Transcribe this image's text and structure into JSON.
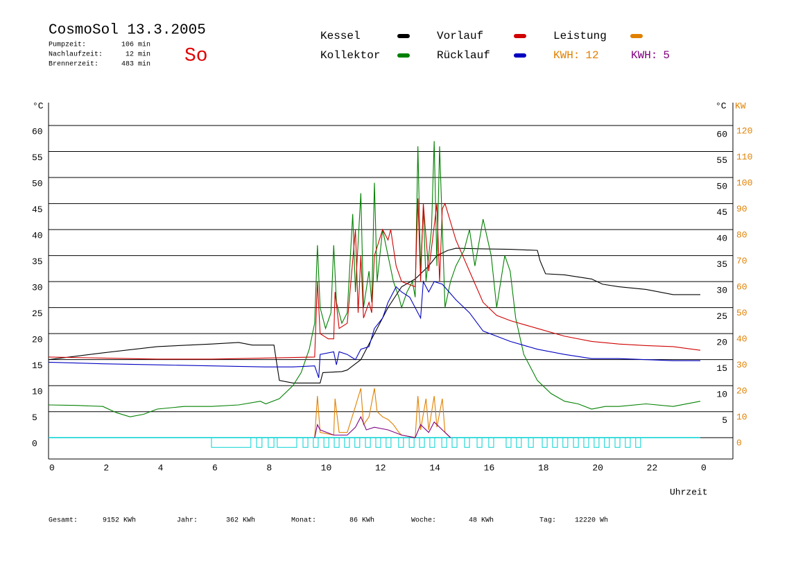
{
  "header": {
    "title": "CosmoSol 13.3.2005",
    "day": "So",
    "stats": [
      {
        "label": "Pumpzeit:",
        "value": "106 min"
      },
      {
        "label": "Nachlaufzeit:",
        "value": "12 min"
      },
      {
        "label": "Brennerzeit:",
        "value": "483 min"
      }
    ]
  },
  "chart_data": {
    "type": "line",
    "x_label": "Uhrzeit",
    "y_label": "°C",
    "y2_label": "KW",
    "xlim": [
      0,
      25.2
    ],
    "xticks": [
      0,
      2,
      4,
      6,
      8,
      10,
      12,
      14,
      16,
      18,
      20,
      22,
      {
        "value": 24,
        "label": "0"
      }
    ],
    "ylim": [
      -4.1,
      64.4
    ],
    "yticks": [
      0,
      5,
      10,
      15,
      20,
      25,
      30,
      35,
      40,
      45,
      50,
      55,
      60
    ],
    "y_right_ticks": [
      5,
      10,
      15,
      20,
      25,
      30,
      35,
      40,
      45,
      50,
      55,
      60
    ],
    "y2lim": [
      -8.2,
      128.8
    ],
    "y2ticks": [
      0,
      10,
      20,
      30,
      40,
      50,
      60,
      70,
      80,
      90,
      100,
      110,
      120
    ],
    "grid": true,
    "series": [
      {
        "name": "Kessel",
        "color": "#000000",
        "x": [
          0,
          2,
          4,
          6,
          7,
          7.5,
          8.3,
          8.5,
          9,
          10,
          10.1,
          10.8,
          11,
          11.5,
          12,
          12.5,
          13,
          13.5,
          14,
          14.3,
          14.7,
          15,
          16,
          17,
          18,
          18.1,
          18.3,
          19,
          20,
          20.4,
          21,
          22,
          23,
          24
        ],
        "values": [
          15,
          16.3,
          17.5,
          18,
          18.3,
          17.8,
          17.8,
          11,
          10.5,
          10.5,
          12.5,
          12.7,
          13,
          15,
          20,
          25,
          29,
          30.5,
          33,
          35,
          36,
          36.4,
          36.3,
          36.2,
          36,
          34,
          31.5,
          31.3,
          30.5,
          29.5,
          29,
          28.5,
          27.5,
          27.5
        ]
      },
      {
        "name": "Kollektor",
        "color": "#008000",
        "x": [
          0,
          1,
          2,
          2.5,
          3,
          3.5,
          4,
          5,
          6,
          7,
          7.8,
          8,
          8.5,
          9,
          9.3,
          9.6,
          9.8,
          9.9,
          10,
          10.2,
          10.4,
          10.5,
          10.6,
          10.8,
          11,
          11.2,
          11.3,
          11.5,
          11.6,
          11.8,
          11.9,
          12,
          12.1,
          12.3,
          12.5,
          12.7,
          12.9,
          13,
          13.2,
          13.4,
          13.5,
          13.6,
          13.7,
          13.8,
          13.9,
          14.1,
          14.2,
          14.3,
          14.4,
          14.6,
          14.8,
          15,
          15.3,
          15.5,
          15.7,
          16,
          16.3,
          16.5,
          16.8,
          17,
          17.2,
          17.5,
          18,
          18.5,
          19,
          19.5,
          20,
          20.5,
          21,
          22,
          23,
          24
        ],
        "values": [
          6.3,
          6.2,
          6,
          4.8,
          4,
          4.5,
          5.5,
          6,
          6,
          6.3,
          7,
          6.5,
          7.5,
          10,
          12.5,
          17,
          22,
          37,
          25,
          21,
          24,
          37,
          26,
          22,
          24,
          43,
          28,
          47,
          25,
          32,
          26,
          49,
          30,
          40,
          35,
          30,
          27,
          25,
          28,
          30,
          27,
          56,
          32,
          44,
          30,
          40,
          57,
          33,
          56,
          25,
          30,
          33,
          36,
          40,
          33,
          42,
          35,
          25,
          35,
          32,
          23,
          16,
          11,
          8.5,
          7,
          6.5,
          5.5,
          6,
          6,
          6.5,
          6,
          7
        ]
      },
      {
        "name": "Vorlauf",
        "color": "#d00000",
        "x": [
          0,
          2,
          4,
          6,
          8,
          9.8,
          9.9,
          10,
          10.3,
          10.5,
          10.55,
          10.7,
          11,
          11.3,
          11.4,
          11.5,
          11.6,
          11.8,
          11.9,
          12,
          12.3,
          12.5,
          12.6,
          12.8,
          13,
          13.5,
          13.6,
          13.7,
          13.8,
          14,
          14.3,
          14.4,
          14.5,
          14.6,
          15,
          15.5,
          16,
          16.5,
          17,
          18,
          19,
          20,
          21,
          22,
          23,
          24
        ],
        "values": [
          15.5,
          15.3,
          15.1,
          15.1,
          15.3,
          15.5,
          30,
          20,
          19,
          19,
          28,
          21,
          22,
          40,
          24,
          35,
          23,
          26,
          24,
          35,
          40,
          38,
          40,
          33,
          30,
          29,
          46,
          30,
          45,
          32,
          45,
          30,
          44,
          45,
          38,
          32,
          26,
          23.5,
          22.5,
          21,
          19.5,
          18.5,
          18,
          17.7,
          17.5,
          16.8
        ]
      },
      {
        "name": "Rücklauf",
        "color": "#0000c0",
        "x": [
          0,
          2,
          4,
          6,
          8,
          9,
          9.8,
          9.95,
          10,
          10.5,
          10.6,
          10.7,
          11,
          11.3,
          11.5,
          11.8,
          12,
          12.3,
          12.5,
          12.8,
          13,
          13.3,
          13.7,
          13.8,
          14,
          14.2,
          14.5,
          15,
          15.5,
          16,
          17,
          18,
          19,
          20,
          21,
          22,
          23,
          24
        ],
        "values": [
          14.5,
          14.2,
          14,
          13.8,
          13.6,
          13.6,
          13.8,
          11.5,
          16,
          16.5,
          14,
          16.5,
          16,
          15,
          17,
          17.5,
          21,
          23,
          26,
          29,
          28,
          27,
          23,
          30,
          28,
          30,
          29.5,
          26.5,
          24,
          20.5,
          18.5,
          17,
          16,
          15.2,
          15.2,
          15,
          14.8,
          14.8
        ]
      },
      {
        "name": "Leistung",
        "color": "#e08000",
        "axis": "y2",
        "x": [
          9.8,
          9.9,
          10,
          10.5,
          10.55,
          10.7,
          11,
          11.3,
          11.5,
          11.6,
          11.8,
          12,
          12.1,
          12.3,
          12.5,
          12.7,
          12.9,
          13,
          13.5,
          13.6,
          13.7,
          13.9,
          14,
          14.2,
          14.3,
          14.5,
          14.6,
          14.8
        ],
        "values": [
          0,
          16,
          2,
          1,
          15,
          2,
          2,
          12,
          19,
          5,
          8,
          19,
          10,
          8,
          7,
          5,
          2,
          1,
          0,
          16,
          3,
          15,
          3,
          16,
          4,
          15,
          2,
          0
        ]
      },
      {
        "color": "#800080",
        "axis": "y2",
        "x": [
          9.8,
          9.9,
          10,
          10.5,
          11,
          11.3,
          11.5,
          11.7,
          12,
          12.5,
          13,
          13.5,
          13.7,
          14,
          14.2,
          14.5,
          14.8
        ],
        "values": [
          0,
          5,
          3,
          1,
          1,
          4,
          8,
          3,
          4,
          3,
          1,
          0,
          5,
          2,
          6,
          3,
          0
        ]
      }
    ],
    "kwh": [
      {
        "label": "KWH:",
        "value": 12,
        "color": "#e08000"
      },
      {
        "label": "KWH:",
        "value": 5,
        "color": "#800080"
      }
    ],
    "pump_color": "#00d0d0",
    "pump": [
      [
        6.0,
        7.45
      ],
      [
        7.66,
        7.86
      ],
      [
        8.09,
        8.3
      ],
      [
        8.42,
        9.14
      ],
      [
        9.37,
        9.55
      ],
      [
        9.75,
        9.93
      ],
      [
        10.14,
        10.32
      ],
      [
        10.52,
        10.7
      ],
      [
        10.9,
        11.08
      ],
      [
        11.28,
        11.46
      ],
      [
        11.67,
        11.85
      ],
      [
        12.05,
        12.23
      ],
      [
        12.43,
        12.61
      ],
      [
        12.89,
        13.07
      ],
      [
        13.28,
        13.46
      ],
      [
        13.66,
        13.84
      ],
      [
        14.04,
        14.22
      ],
      [
        14.48,
        14.66
      ],
      [
        14.86,
        15.04
      ],
      [
        15.32,
        15.5
      ],
      [
        15.78,
        15.96
      ],
      [
        16.21,
        16.39
      ],
      [
        16.85,
        17.03
      ],
      [
        17.23,
        17.41
      ],
      [
        17.67,
        17.85
      ],
      [
        18.18,
        18.36
      ],
      [
        18.56,
        18.74
      ],
      [
        18.94,
        19.12
      ],
      [
        19.33,
        19.51
      ],
      [
        19.71,
        19.89
      ],
      [
        20.09,
        20.27
      ],
      [
        20.47,
        20.65
      ],
      [
        20.86,
        21.04
      ],
      [
        21.24,
        21.42
      ],
      [
        21.62,
        21.8
      ]
    ]
  },
  "footer": [
    {
      "label": "Gesamt:",
      "value": "9152 KWh"
    },
    {
      "label": "Jahr:",
      "value": "362 KWh"
    },
    {
      "label": "Monat:",
      "value": "86 KWh"
    },
    {
      "label": "Woche:",
      "value": "48 KWh"
    },
    {
      "label": "Tag:",
      "value": "12220 Wh"
    }
  ]
}
